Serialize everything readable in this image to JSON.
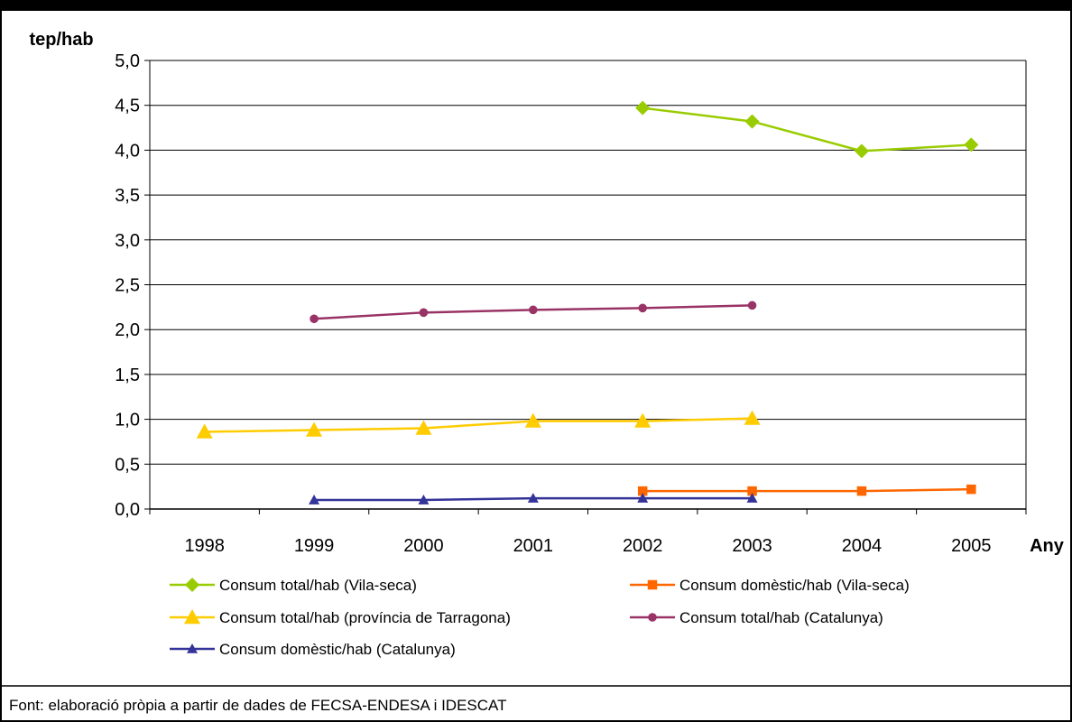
{
  "chart_data": {
    "type": "line",
    "title": "",
    "ylabel": "tep/hab",
    "xlabel": "Any",
    "ylim": [
      0,
      5
    ],
    "y_ticks": [
      "0,0",
      "0,5",
      "1,0",
      "1,5",
      "2,0",
      "2,5",
      "3,0",
      "3,5",
      "4,0",
      "4,5",
      "5,0"
    ],
    "grid": true,
    "legend_position": "bottom",
    "categories": [
      "1998",
      "1999",
      "2000",
      "2001",
      "2002",
      "2003",
      "2004",
      "2005"
    ],
    "series": [
      {
        "name": "Consum total/hab (Vila-seca)",
        "color": "#99CC00",
        "marker": "diamond",
        "values": [
          null,
          null,
          null,
          null,
          4.47,
          4.32,
          3.99,
          4.06
        ]
      },
      {
        "name": "Consum domèstic/hab (Vila-seca)",
        "color": "#FF6600",
        "marker": "square",
        "values": [
          null,
          null,
          null,
          null,
          0.2,
          0.2,
          0.2,
          0.22
        ]
      },
      {
        "name": "Consum total/hab (província de Tarragona)",
        "color": "#FFCC00",
        "marker": "triangle",
        "values": [
          0.86,
          0.88,
          0.9,
          0.98,
          0.98,
          1.01,
          null,
          null
        ]
      },
      {
        "name": "Consum total/hab (Catalunya)",
        "color": "#993366",
        "marker": "circle",
        "values": [
          null,
          2.12,
          2.19,
          2.22,
          2.24,
          2.27,
          null,
          null
        ]
      },
      {
        "name": "Consum domèstic/hab (Catalunya)",
        "color": "#333399",
        "marker": "triangle",
        "values": [
          null,
          0.1,
          0.1,
          0.12,
          0.12,
          0.12,
          null,
          null
        ]
      }
    ]
  },
  "source_note": "Font: elaboració pròpia a partir de dades de FECSA-ENDESA i IDESCAT"
}
